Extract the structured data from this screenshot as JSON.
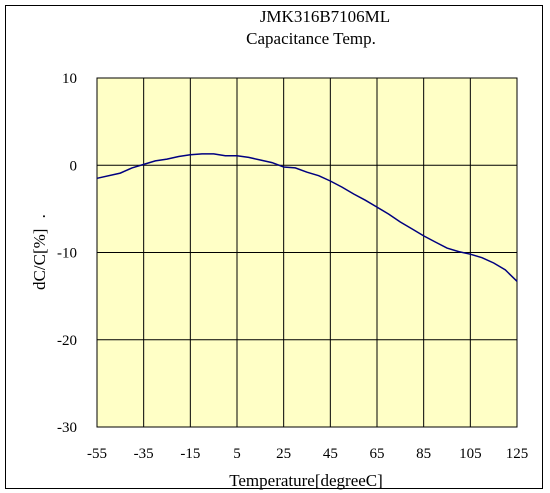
{
  "chart_data": {
    "type": "line",
    "title": "JMK316B7106ML",
    "subtitle": "Capacitance Temp.",
    "xlabel": "Temperature[degreeC]",
    "ylabel": "dC/C[%]",
    "ylabel_suffix": ".",
    "xlim": [
      -55,
      125
    ],
    "ylim": [
      -30,
      10
    ],
    "xticks": [
      -55,
      -35,
      -15,
      5,
      25,
      45,
      65,
      85,
      105,
      125
    ],
    "yticks": [
      10,
      0,
      -10,
      -20,
      -30
    ],
    "grid": true,
    "legend": "none",
    "colors": {
      "plot_bg": "#ffffc6",
      "line": "#000080",
      "grid": "#000000"
    },
    "series": [
      {
        "x": [
          -55,
          -45,
          -40,
          -35,
          -30,
          -25,
          -20,
          -15,
          -10,
          -5,
          0,
          5,
          10,
          15,
          20,
          25,
          30,
          35,
          40,
          45,
          50,
          55,
          60,
          65,
          70,
          75,
          80,
          85,
          90,
          95,
          100,
          105,
          110,
          115,
          120,
          125
        ],
        "y": [
          -1.5,
          -0.9,
          -0.3,
          0.1,
          0.5,
          0.7,
          1.0,
          1.2,
          1.3,
          1.3,
          1.1,
          1.1,
          0.9,
          0.6,
          0.3,
          -0.2,
          -0.3,
          -0.8,
          -1.2,
          -1.8,
          -2.5,
          -3.3,
          -4.0,
          -4.8,
          -5.6,
          -6.5,
          -7.3,
          -8.1,
          -8.8,
          -9.5,
          -9.9,
          -10.2,
          -10.6,
          -11.2,
          -12.0,
          -13.3
        ]
      }
    ]
  }
}
